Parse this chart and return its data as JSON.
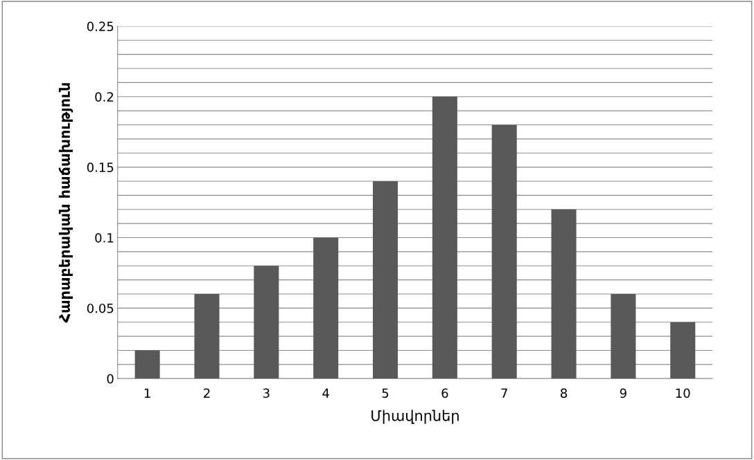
{
  "chart_data": {
    "type": "bar",
    "xlabel": "Միավորներ",
    "ylabel": "Հարաբերական հաճախություն",
    "categories": [
      "1",
      "2",
      "3",
      "4",
      "5",
      "6",
      "7",
      "8",
      "9",
      "10"
    ],
    "values": [
      0.02,
      0.06,
      0.08,
      0.1,
      0.14,
      0.2,
      0.18,
      0.12,
      0.06,
      0.04
    ],
    "color": "#595959",
    "ylim": [
      0,
      0.25
    ],
    "yticks": [
      0,
      {
        "value": 0.01,
        "label": null
      },
      {
        "value": 0.02,
        "label": null
      },
      {
        "value": 0.03,
        "label": null
      },
      {
        "value": 0.04,
        "label": null
      },
      0.05,
      {
        "value": 0.06,
        "label": null
      },
      {
        "value": 0.07,
        "label": null
      },
      {
        "value": 0.08,
        "label": null
      },
      {
        "value": 0.09,
        "label": null
      },
      0.1,
      {
        "value": 0.11,
        "label": null
      },
      {
        "value": 0.12,
        "label": null
      },
      {
        "value": 0.13,
        "label": null
      },
      {
        "value": 0.14,
        "label": null
      },
      0.15,
      {
        "value": 0.16,
        "label": null
      },
      {
        "value": 0.17,
        "label": null
      },
      {
        "value": 0.18,
        "label": null
      },
      {
        "value": 0.19,
        "label": null
      },
      0.2,
      {
        "value": 0.21,
        "label": null
      },
      {
        "value": 0.22,
        "label": null
      },
      {
        "value": 0.23,
        "label": null
      },
      {
        "value": 0.24,
        "label": null
      },
      0.25
    ],
    "grid": "y"
  }
}
